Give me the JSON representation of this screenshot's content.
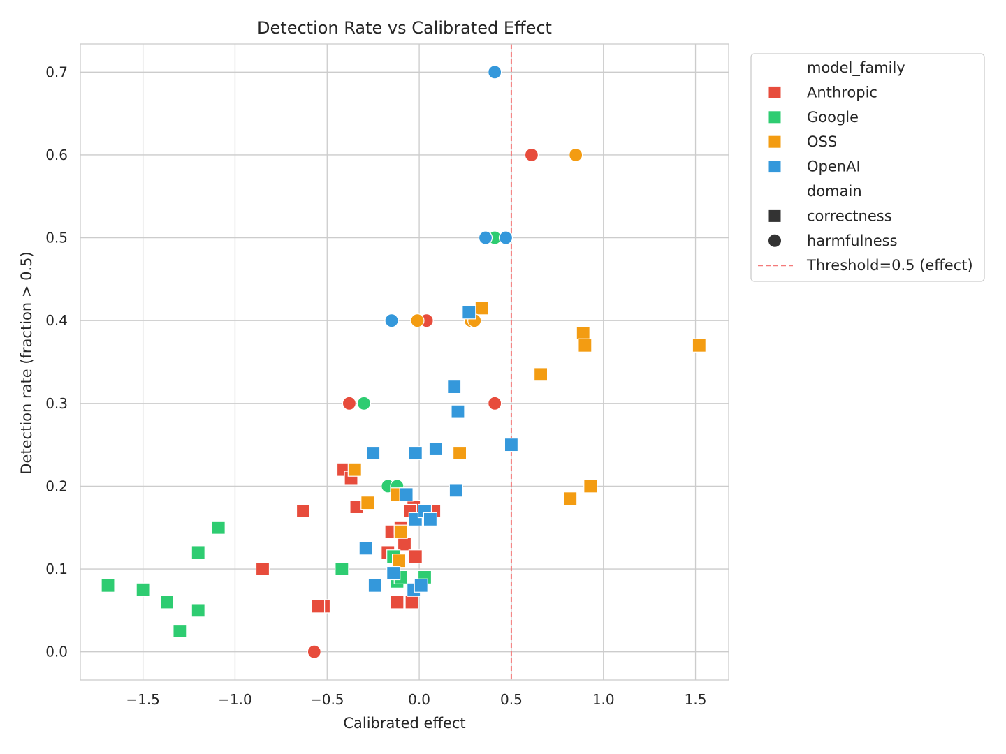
{
  "chart_data": {
    "type": "scatter",
    "title": "Detection Rate vs Calibrated Effect",
    "xlabel": "Calibrated effect",
    "ylabel": "Detection rate (fraction > 0.5)",
    "xlim": [
      -1.84,
      1.68
    ],
    "ylim": [
      -0.034,
      0.734
    ],
    "xticks": [
      -1.5,
      -1.0,
      -0.5,
      0.0,
      0.5,
      1.0,
      1.5
    ],
    "xtick_labels": [
      "−1.5",
      "−1.0",
      "−0.5",
      "0.0",
      "0.5",
      "1.0",
      "1.5"
    ],
    "yticks": [
      0.0,
      0.1,
      0.2,
      0.3,
      0.4,
      0.5,
      0.6,
      0.7
    ],
    "ytick_labels": [
      "0.0",
      "0.1",
      "0.2",
      "0.3",
      "0.4",
      "0.5",
      "0.6",
      "0.7"
    ],
    "grid": true,
    "legend_position": "outside-right",
    "threshold": {
      "x": 0.5,
      "label": "Threshold=0.5 (effect)",
      "color": "#f47a7a"
    },
    "hue_title": "model_family",
    "style_title": "domain",
    "families": [
      {
        "name": "Anthropic",
        "color": "#e74c3c"
      },
      {
        "name": "Google",
        "color": "#2ecc71"
      },
      {
        "name": "OSS",
        "color": "#f39c12"
      },
      {
        "name": "OpenAI",
        "color": "#3498db"
      }
    ],
    "domains": [
      {
        "name": "correctness",
        "marker": "square"
      },
      {
        "name": "harmfulness",
        "marker": "circle"
      }
    ],
    "series": [
      {
        "family": "Anthropic",
        "domain": "correctness",
        "points": [
          [
            -0.85,
            0.1
          ],
          [
            -0.63,
            0.17
          ],
          [
            -0.41,
            0.22
          ],
          [
            -0.37,
            0.21
          ],
          [
            -0.34,
            0.175
          ],
          [
            -0.52,
            0.055
          ],
          [
            -0.55,
            0.055
          ],
          [
            -0.15,
            0.145
          ],
          [
            -0.17,
            0.12
          ],
          [
            -0.08,
            0.13
          ],
          [
            -0.1,
            0.15
          ],
          [
            -0.02,
            0.115
          ],
          [
            -0.03,
            0.175
          ],
          [
            0.08,
            0.17
          ],
          [
            -0.05,
            0.17
          ],
          [
            -0.12,
            0.06
          ],
          [
            -0.04,
            0.06
          ]
        ]
      },
      {
        "family": "Anthropic",
        "domain": "harmfulness",
        "points": [
          [
            -0.57,
            0.0
          ],
          [
            -0.38,
            0.3
          ],
          [
            0.04,
            0.4
          ],
          [
            0.41,
            0.3
          ],
          [
            0.61,
            0.6
          ]
        ]
      },
      {
        "family": "Google",
        "domain": "correctness",
        "points": [
          [
            -1.69,
            0.08
          ],
          [
            -1.5,
            0.075
          ],
          [
            -1.37,
            0.06
          ],
          [
            -1.3,
            0.025
          ],
          [
            -1.2,
            0.12
          ],
          [
            -1.2,
            0.05
          ],
          [
            -1.09,
            0.15
          ],
          [
            -0.42,
            0.1
          ],
          [
            -0.14,
            0.115
          ],
          [
            -0.12,
            0.085
          ],
          [
            -0.1,
            0.09
          ],
          [
            0.03,
            0.09
          ]
        ]
      },
      {
        "family": "Google",
        "domain": "harmfulness",
        "points": [
          [
            -0.3,
            0.3
          ],
          [
            -0.17,
            0.2
          ],
          [
            -0.12,
            0.2
          ],
          [
            0.41,
            0.5
          ]
        ]
      },
      {
        "family": "OSS",
        "domain": "correctness",
        "points": [
          [
            -0.35,
            0.22
          ],
          [
            -0.28,
            0.18
          ],
          [
            -0.12,
            0.19
          ],
          [
            -0.1,
            0.145
          ],
          [
            -0.11,
            0.11
          ],
          [
            0.22,
            0.24
          ],
          [
            0.34,
            0.415
          ],
          [
            0.66,
            0.335
          ],
          [
            0.82,
            0.185
          ],
          [
            0.89,
            0.385
          ],
          [
            0.9,
            0.37
          ],
          [
            0.93,
            0.2
          ],
          [
            1.52,
            0.37
          ]
        ]
      },
      {
        "family": "OSS",
        "domain": "harmfulness",
        "points": [
          [
            -0.01,
            0.4
          ],
          [
            0.28,
            0.4
          ],
          [
            0.3,
            0.4
          ],
          [
            0.85,
            0.6
          ]
        ]
      },
      {
        "family": "OpenAI",
        "domain": "correctness",
        "points": [
          [
            -0.25,
            0.24
          ],
          [
            -0.29,
            0.125
          ],
          [
            -0.24,
            0.08
          ],
          [
            -0.14,
            0.095
          ],
          [
            -0.07,
            0.19
          ],
          [
            -0.02,
            0.24
          ],
          [
            -0.02,
            0.16
          ],
          [
            0.03,
            0.17
          ],
          [
            0.06,
            0.16
          ],
          [
            -0.03,
            0.075
          ],
          [
            0.01,
            0.08
          ],
          [
            0.09,
            0.245
          ],
          [
            0.19,
            0.32
          ],
          [
            0.21,
            0.29
          ],
          [
            0.2,
            0.195
          ],
          [
            0.27,
            0.41
          ],
          [
            0.5,
            0.25
          ]
        ]
      },
      {
        "family": "OpenAI",
        "domain": "harmfulness",
        "points": [
          [
            -0.15,
            0.4
          ],
          [
            0.36,
            0.5
          ],
          [
            0.47,
            0.5
          ],
          [
            0.41,
            0.7
          ]
        ]
      }
    ]
  }
}
